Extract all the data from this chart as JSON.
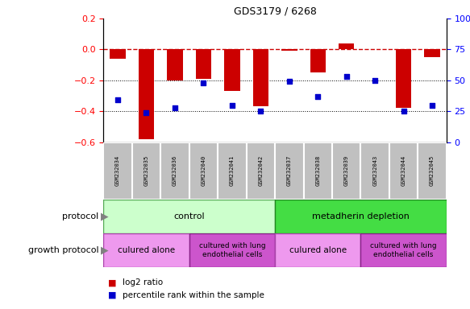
{
  "title": "GDS3179 / 6268",
  "samples": [
    "GSM232034",
    "GSM232035",
    "GSM232036",
    "GSM232040",
    "GSM232041",
    "GSM232042",
    "GSM232037",
    "GSM232038",
    "GSM232039",
    "GSM232043",
    "GSM232044",
    "GSM232045"
  ],
  "log2_ratio": [
    -0.06,
    -0.58,
    -0.2,
    -0.19,
    -0.27,
    -0.37,
    -0.01,
    -0.15,
    0.04,
    0.0,
    -0.38,
    -0.05
  ],
  "percentile_rank": [
    34,
    24,
    28,
    48,
    30,
    25,
    49,
    37,
    53,
    50,
    25,
    30
  ],
  "ylim_left": [
    -0.6,
    0.2
  ],
  "ylim_right": [
    0,
    100
  ],
  "yticks_left": [
    -0.6,
    -0.4,
    -0.2,
    0.0,
    0.2
  ],
  "yticks_right": [
    0,
    25,
    50,
    75,
    100
  ],
  "bar_color": "#cc0000",
  "dot_color": "#0000cc",
  "dashed_line_color": "#cc0000",
  "protocol_control_color": "#ccffcc",
  "protocol_depletion_color": "#44dd44",
  "growth_alone_color": "#ee99ee",
  "growth_lung_color": "#cc55cc",
  "protocol_label": "protocol",
  "growth_label": "growth protocol",
  "control_label": "control",
  "depletion_label": "metadherin depletion",
  "alone_label": "culured alone",
  "lung_label": "cultured with lung\nendothelial cells",
  "legend_bar_label": "log2 ratio",
  "legend_dot_label": "percentile rank within the sample"
}
